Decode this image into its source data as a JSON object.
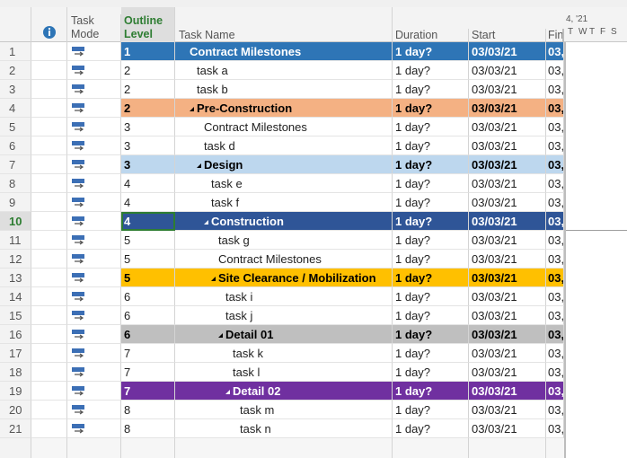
{
  "header": {
    "columns": {
      "task_mode": "Task Mode",
      "outline_level": "Outline Level",
      "task_name": "Task Name",
      "duration": "Duration",
      "start": "Start",
      "finish": "Fin"
    },
    "timescale": {
      "week": "4, '21",
      "days": [
        "T",
        "W",
        "T",
        "F",
        "S"
      ]
    }
  },
  "rows": [
    {
      "id": 1,
      "level": 1,
      "name": "Contract Milestones",
      "duration": "1 day?",
      "start": "03/03/21",
      "finish": "03,",
      "summary": false,
      "fill": "#2e75b6",
      "text_color": "#ffffff"
    },
    {
      "id": 2,
      "level": 2,
      "name": "task a",
      "duration": "1 day?",
      "start": "03/03/21",
      "finish": "03,"
    },
    {
      "id": 3,
      "level": 2,
      "name": "task b",
      "duration": "1 day?",
      "start": "03/03/21",
      "finish": "03,"
    },
    {
      "id": 4,
      "level": 2,
      "name": "Pre-Construction",
      "duration": "1 day?",
      "start": "03/03/21",
      "finish": "03,",
      "summary": true,
      "fill": "#f4b183",
      "text_color": "#000000"
    },
    {
      "id": 5,
      "level": 3,
      "name": "Contract Milestones",
      "duration": "1 day?",
      "start": "03/03/21",
      "finish": "03,"
    },
    {
      "id": 6,
      "level": 3,
      "name": "task d",
      "duration": "1 day?",
      "start": "03/03/21",
      "finish": "03,"
    },
    {
      "id": 7,
      "level": 3,
      "name": "Design",
      "duration": "1 day?",
      "start": "03/03/21",
      "finish": "03,",
      "summary": true,
      "fill": "#bdd7ee",
      "text_color": "#000000"
    },
    {
      "id": 8,
      "level": 4,
      "name": "task e",
      "duration": "1 day?",
      "start": "03/03/21",
      "finish": "03,"
    },
    {
      "id": 9,
      "level": 4,
      "name": "task f",
      "duration": "1 day?",
      "start": "03/03/21",
      "finish": "03,"
    },
    {
      "id": 10,
      "level": 4,
      "name": "Construction",
      "duration": "1 day?",
      "start": "03/03/21",
      "finish": "03,",
      "summary": true,
      "fill": "#2f5597",
      "text_color": "#ffffff",
      "selected": true
    },
    {
      "id": 11,
      "level": 5,
      "name": "task g",
      "duration": "1 day?",
      "start": "03/03/21",
      "finish": "03,"
    },
    {
      "id": 12,
      "level": 5,
      "name": "Contract Milestones",
      "duration": "1 day?",
      "start": "03/03/21",
      "finish": "03,"
    },
    {
      "id": 13,
      "level": 5,
      "name": "Site Clearance / Mobilization",
      "duration": "1 day?",
      "start": "03/03/21",
      "finish": "03,",
      "summary": true,
      "fill": "#ffc000",
      "text_color": "#000000"
    },
    {
      "id": 14,
      "level": 6,
      "name": "task i",
      "duration": "1 day?",
      "start": "03/03/21",
      "finish": "03,"
    },
    {
      "id": 15,
      "level": 6,
      "name": "task j",
      "duration": "1 day?",
      "start": "03/03/21",
      "finish": "03,"
    },
    {
      "id": 16,
      "level": 6,
      "name": "Detail 01",
      "duration": "1 day?",
      "start": "03/03/21",
      "finish": "03,",
      "summary": true,
      "fill": "#bfbfbf",
      "text_color": "#000000"
    },
    {
      "id": 17,
      "level": 7,
      "name": "task k",
      "duration": "1 day?",
      "start": "03/03/21",
      "finish": "03,"
    },
    {
      "id": 18,
      "level": 7,
      "name": "task l",
      "duration": "1 day?",
      "start": "03/03/21",
      "finish": "03,"
    },
    {
      "id": 19,
      "level": 7,
      "name": "Detail 02",
      "duration": "1 day?",
      "start": "03/03/21",
      "finish": "03,",
      "summary": true,
      "fill": "#7030a0",
      "text_color": "#ffffff"
    },
    {
      "id": 20,
      "level": 8,
      "name": "task m",
      "duration": "1 day?",
      "start": "03/03/21",
      "finish": "03,"
    },
    {
      "id": 21,
      "level": 8,
      "name": "task n",
      "duration": "1 day?",
      "start": "03/03/21",
      "finish": "03,"
    }
  ]
}
